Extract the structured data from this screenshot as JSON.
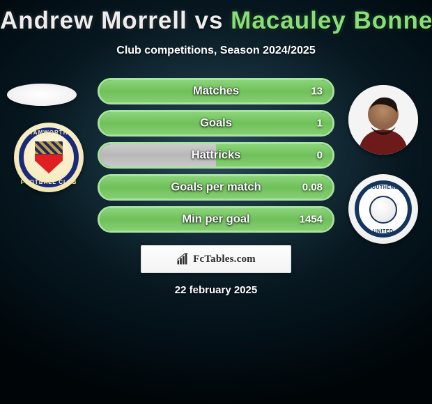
{
  "title": {
    "player1": "Andrew Morrell",
    "vs": "vs",
    "player2": "Macauley Bonne",
    "font_size": 35,
    "p1_color": "#ededed",
    "p2_color": "#88de78"
  },
  "subtitle": {
    "text": "Club competitions, Season 2024/2025",
    "font_size": 16,
    "color": "#ffffff"
  },
  "colors": {
    "bar_border": "#a8e59c",
    "bar_left_fill": "#c0c0c0",
    "bar_right_fill": "#7ecb68",
    "text_shadow": "#000000",
    "background_center": "#1e3845",
    "background_edge": "#000508"
  },
  "bar_layout": {
    "track_width": 340,
    "track_height": 38,
    "border_width": 3,
    "border_radius": 19,
    "gap": 8
  },
  "stats": [
    {
      "label": "Matches",
      "left_val": "",
      "right_val": "13",
      "left_pct": 0,
      "right_pct": 100
    },
    {
      "label": "Goals",
      "left_val": "",
      "right_val": "1",
      "left_pct": 0,
      "right_pct": 100
    },
    {
      "label": "Hattricks",
      "left_val": "",
      "right_val": "0",
      "left_pct": 50,
      "right_pct": 50
    },
    {
      "label": "Goals per match",
      "left_val": "",
      "right_val": "0.08",
      "left_pct": 0,
      "right_pct": 100
    },
    {
      "label": "Min per goal",
      "left_val": "",
      "right_val": "1454",
      "left_pct": 0,
      "right_pct": 100
    }
  ],
  "left_crest": {
    "top_text": "TAMWORTH",
    "bottom_text": "FOOTBALL CLUB"
  },
  "right_crest": {
    "top_text": "SOUTHEND",
    "bottom_text": "UNITED"
  },
  "brand": {
    "text": "FcTables.com",
    "font_size": 15,
    "color": "#2b2b2b"
  },
  "date": {
    "text": "22 february 2025",
    "font_size": 15,
    "color": "#ffffff"
  }
}
